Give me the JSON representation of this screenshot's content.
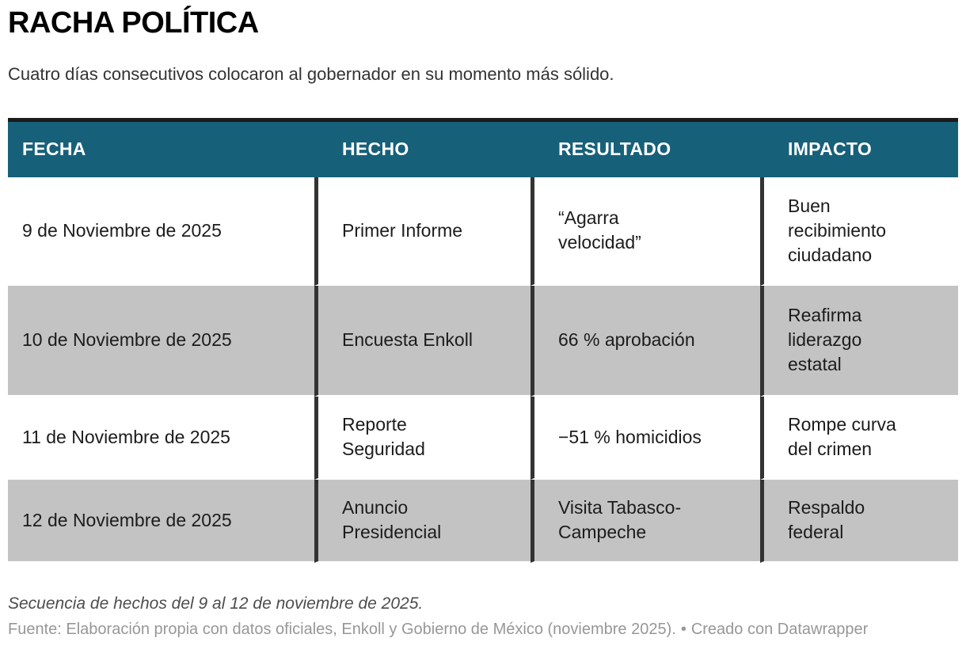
{
  "chart_data": {
    "type": "table",
    "title": "RACHA POLÍTICA",
    "subtitle": "Cuatro días consecutivos colocaron al gobernador en su momento más sólido.",
    "columns": [
      "FECHA",
      "HECHO",
      "RESULTADO",
      "IMPACTO"
    ],
    "rows": [
      [
        "9 de Noviembre de 2025",
        "Primer Informe",
        "“Agarra\nvelocidad”",
        "Buen\nrecibimiento\nciudadano"
      ],
      [
        "10 de Noviembre de 2025",
        "Encuesta Enkoll",
        "66 % aprobación",
        "Reafirma\nliderazgo\nestatal"
      ],
      [
        "11 de Noviembre de 2025",
        "Reporte\nSeguridad",
        "−51 % homicidios",
        "Rompe curva\ndel crimen"
      ],
      [
        "12 de Noviembre de 2025",
        "Anuncio\nPresidencial",
        "Visita Tabasco-\nCampeche",
        "Respaldo\nfederal"
      ]
    ],
    "note": "Secuencia de hechos del 9 al 12 de noviembre de 2025.",
    "source": "Fuente: Elaboración propia con datos oficiales, Enkoll y Gobierno de México (noviembre 2025).",
    "separator": "•",
    "attribution": "Creado con Datawrapper",
    "layout_hints": {
      "zebra_striping": true,
      "header_uppercase": true,
      "column_dividers": true,
      "legend": "none",
      "grid": "off"
    }
  },
  "colors": {
    "header_bg": "#17607a",
    "header_text": "#ffffff",
    "row_alt_bg": "#c3c3c3",
    "divider": "#333333",
    "top_border": "#1b1b1b",
    "body_text": "#1c1c1c",
    "note_text": "#4d4d4d",
    "source_text": "#979797"
  }
}
